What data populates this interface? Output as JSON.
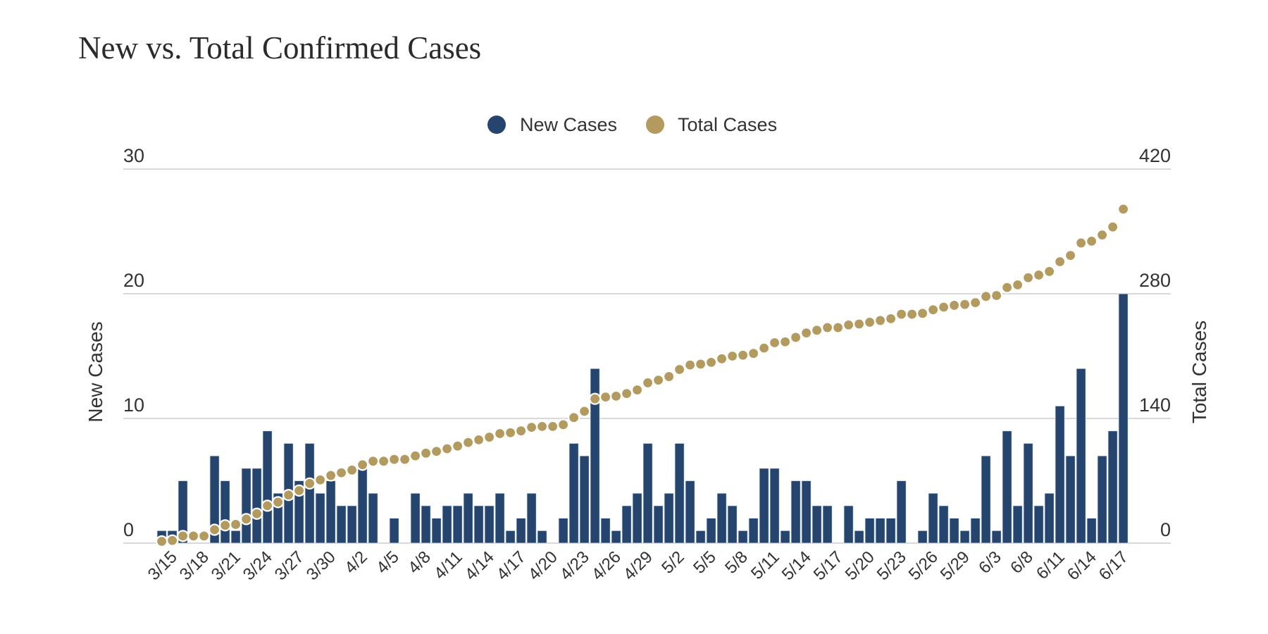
{
  "title": "New vs. Total Confirmed Cases",
  "chart_data": {
    "type": "bar+line",
    "title": "New vs. Total Confirmed Cases",
    "legend": {
      "placement": "top-center",
      "entries": [
        "New Cases",
        "Total Cases"
      ]
    },
    "colors": {
      "new_cases": "#26456e",
      "total_cases": "#b39a5f",
      "grid": "#d9d9d9"
    },
    "grid": true,
    "y_left": {
      "label": "New Cases",
      "range": [
        0,
        30
      ],
      "ticks": [
        "0",
        "10",
        "20",
        "30"
      ]
    },
    "y_right": {
      "label": "Total Cases",
      "range": [
        0,
        420
      ],
      "ticks": [
        "0",
        "140",
        "280",
        "420"
      ]
    },
    "x_tick_labels": [
      "3/15",
      "3/18",
      "3/21",
      "3/24",
      "3/27",
      "3/30",
      "4/2",
      "4/5",
      "4/8",
      "4/11",
      "4/14",
      "4/17",
      "4/20",
      "4/23",
      "4/26",
      "4/29",
      "5/2",
      "5/5",
      "5/8",
      "5/11",
      "5/14",
      "5/17",
      "5/20",
      "5/23",
      "5/26",
      "5/29",
      "6/3",
      "6/8",
      "6/11",
      "6/14",
      "6/17"
    ],
    "categories": [
      "3/14",
      "3/15",
      "3/16",
      "3/17",
      "3/18",
      "3/19",
      "3/20",
      "3/21",
      "3/22",
      "3/23",
      "3/24",
      "3/25",
      "3/26",
      "3/27",
      "3/28",
      "3/29",
      "3/30",
      "3/31",
      "4/1",
      "4/2",
      "4/3",
      "4/4",
      "4/5",
      "4/6",
      "4/7",
      "4/8",
      "4/9",
      "4/10",
      "4/11",
      "4/12",
      "4/13",
      "4/14",
      "4/15",
      "4/16",
      "4/17",
      "4/18",
      "4/19",
      "4/20",
      "4/21",
      "4/22",
      "4/23",
      "4/24",
      "4/25",
      "4/26",
      "4/27",
      "4/28",
      "4/29",
      "4/30",
      "5/1",
      "5/2",
      "5/3",
      "5/4",
      "5/5",
      "5/6",
      "5/7",
      "5/8",
      "5/9",
      "5/10",
      "5/11",
      "5/12",
      "5/13",
      "5/14",
      "5/15",
      "5/16",
      "5/17",
      "5/18",
      "5/19",
      "5/20",
      "5/21",
      "5/22",
      "5/23",
      "5/24",
      "5/25",
      "5/26",
      "5/27",
      "5/28",
      "5/29",
      "6/1",
      "6/2",
      "6/3",
      "6/4",
      "6/5",
      "6/8",
      "6/9",
      "6/10",
      "6/11",
      "6/12",
      "6/13",
      "6/14",
      "6/15",
      "6/16",
      "6/17"
    ],
    "series": [
      {
        "name": "New Cases",
        "type": "bar",
        "axis": "left",
        "values": [
          1,
          1,
          5,
          0,
          0,
          7,
          5,
          1,
          6,
          6,
          9,
          4,
          8,
          5,
          8,
          4,
          5,
          3,
          3,
          6,
          4,
          0,
          2,
          0,
          4,
          3,
          2,
          3,
          3,
          4,
          3,
          3,
          4,
          1,
          2,
          4,
          1,
          0,
          2,
          8,
          7,
          14,
          2,
          1,
          3,
          4,
          8,
          3,
          4,
          8,
          5,
          1,
          2,
          4,
          3,
          1,
          2,
          6,
          6,
          1,
          5,
          5,
          3,
          3,
          0,
          3,
          1,
          2,
          2,
          2,
          5,
          0,
          1,
          4,
          3,
          2,
          1,
          2,
          7,
          1,
          9,
          3,
          8,
          3,
          4,
          11,
          7,
          14,
          2,
          7,
          9,
          20
        ]
      },
      {
        "name": "Total Cases",
        "type": "line-dots",
        "axis": "right",
        "values": [
          2,
          3,
          8,
          8,
          8,
          15,
          20,
          21,
          27,
          33,
          42,
          46,
          54,
          59,
          67,
          71,
          76,
          79,
          82,
          88,
          92,
          92,
          94,
          94,
          98,
          101,
          103,
          106,
          109,
          113,
          116,
          119,
          123,
          124,
          126,
          130,
          131,
          131,
          133,
          141,
          148,
          162,
          164,
          165,
          168,
          172,
          180,
          183,
          187,
          195,
          200,
          201,
          203,
          207,
          210,
          211,
          213,
          219,
          225,
          226,
          231,
          236,
          239,
          242,
          242,
          245,
          246,
          248,
          250,
          252,
          257,
          257,
          258,
          262,
          265,
          267,
          268,
          270,
          277,
          278,
          287,
          290,
          298,
          301,
          305,
          316,
          323,
          337,
          339,
          346,
          355,
          375
        ]
      }
    ]
  }
}
